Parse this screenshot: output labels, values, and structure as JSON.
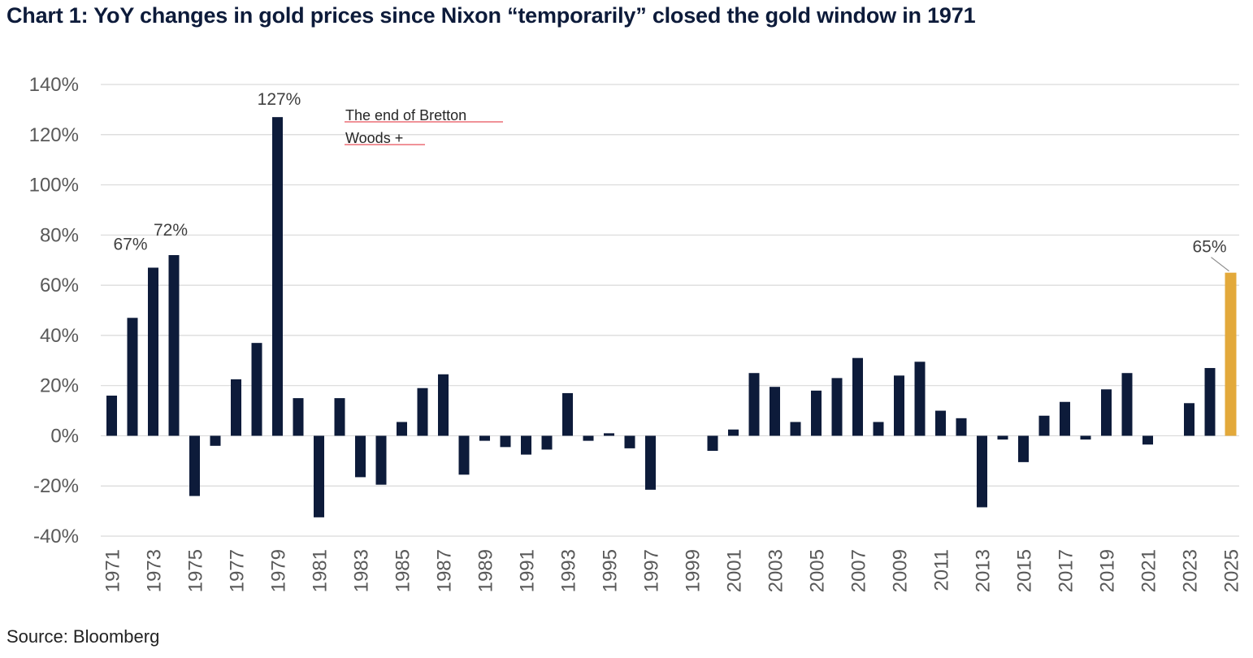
{
  "title": "Chart 1: YoY changes in gold prices since Nixon “temporarily” closed the gold window in 1971",
  "source": "Source: Bloomberg",
  "annotation": {
    "line1": "The end of Bretton",
    "line2": "Woods +"
  },
  "colors": {
    "bar": "#0d1b3a",
    "highlight": "#e3a93b",
    "grid": "#d9d9d9",
    "annotation_underline": "#e8505b"
  },
  "chart_data": {
    "type": "bar",
    "title": "Chart 1: YoY changes in gold prices since Nixon “temporarily” closed the gold window in 1971",
    "xlabel": "",
    "ylabel": "",
    "ylim": [
      -40,
      140
    ],
    "y_ticks": [
      140,
      120,
      100,
      80,
      60,
      40,
      20,
      0,
      -20,
      -40
    ],
    "y_tick_labels": [
      "140%",
      "120%",
      "100%",
      "80%",
      "60%",
      "40%",
      "20%",
      "0%",
      "-20%",
      "-40%"
    ],
    "grid": true,
    "legend": "none",
    "categories": [
      "1971",
      "1972",
      "1973",
      "1974",
      "1975",
      "1976",
      "1977",
      "1978",
      "1979",
      "1980",
      "1981",
      "1982",
      "1983",
      "1984",
      "1985",
      "1986",
      "1987",
      "1988",
      "1989",
      "1990",
      "1991",
      "1992",
      "1993",
      "1994",
      "1995",
      "1996",
      "1997",
      "1998",
      "1999",
      "2000",
      "2001",
      "2002",
      "2003",
      "2004",
      "2005",
      "2006",
      "2007",
      "2008",
      "2009",
      "2010",
      "2011",
      "2012",
      "2013",
      "2014",
      "2015",
      "2016",
      "2017",
      "2018",
      "2019",
      "2020",
      "2021",
      "2022",
      "2023",
      "2024",
      "2025"
    ],
    "x_tick_labels": [
      "1971",
      "1973",
      "1975",
      "1977",
      "1979",
      "1981",
      "1983",
      "1985",
      "1987",
      "1989",
      "1991",
      "1993",
      "1995",
      "1997",
      "1999",
      "2001",
      "2003",
      "2005",
      "2007",
      "2009",
      "2011",
      "2013",
      "2015",
      "2017",
      "2019",
      "2021",
      "2023",
      "2025"
    ],
    "values": [
      16,
      47,
      67,
      72,
      -24,
      -4,
      22.5,
      37,
      127,
      15,
      -32.5,
      15,
      -16.5,
      -19.5,
      5.5,
      19,
      24.5,
      -15.5,
      -2,
      -4.5,
      -7.5,
      -5.5,
      17,
      -2,
      1,
      -5,
      -21.5,
      0,
      0,
      -6,
      2.5,
      25,
      19.5,
      5.5,
      18,
      23,
      31,
      5.5,
      24,
      29.5,
      10,
      7,
      -28.5,
      -1.5,
      -10.5,
      8,
      13.5,
      -1.5,
      18.5,
      25,
      -3.5,
      0,
      13,
      27,
      65
    ],
    "highlight_category": "2025",
    "data_labels": [
      {
        "category": "1973",
        "text": "67%"
      },
      {
        "category": "1974",
        "text": "72%"
      },
      {
        "category": "1979",
        "text": "127%"
      },
      {
        "category": "2025",
        "text": "65%"
      }
    ]
  }
}
